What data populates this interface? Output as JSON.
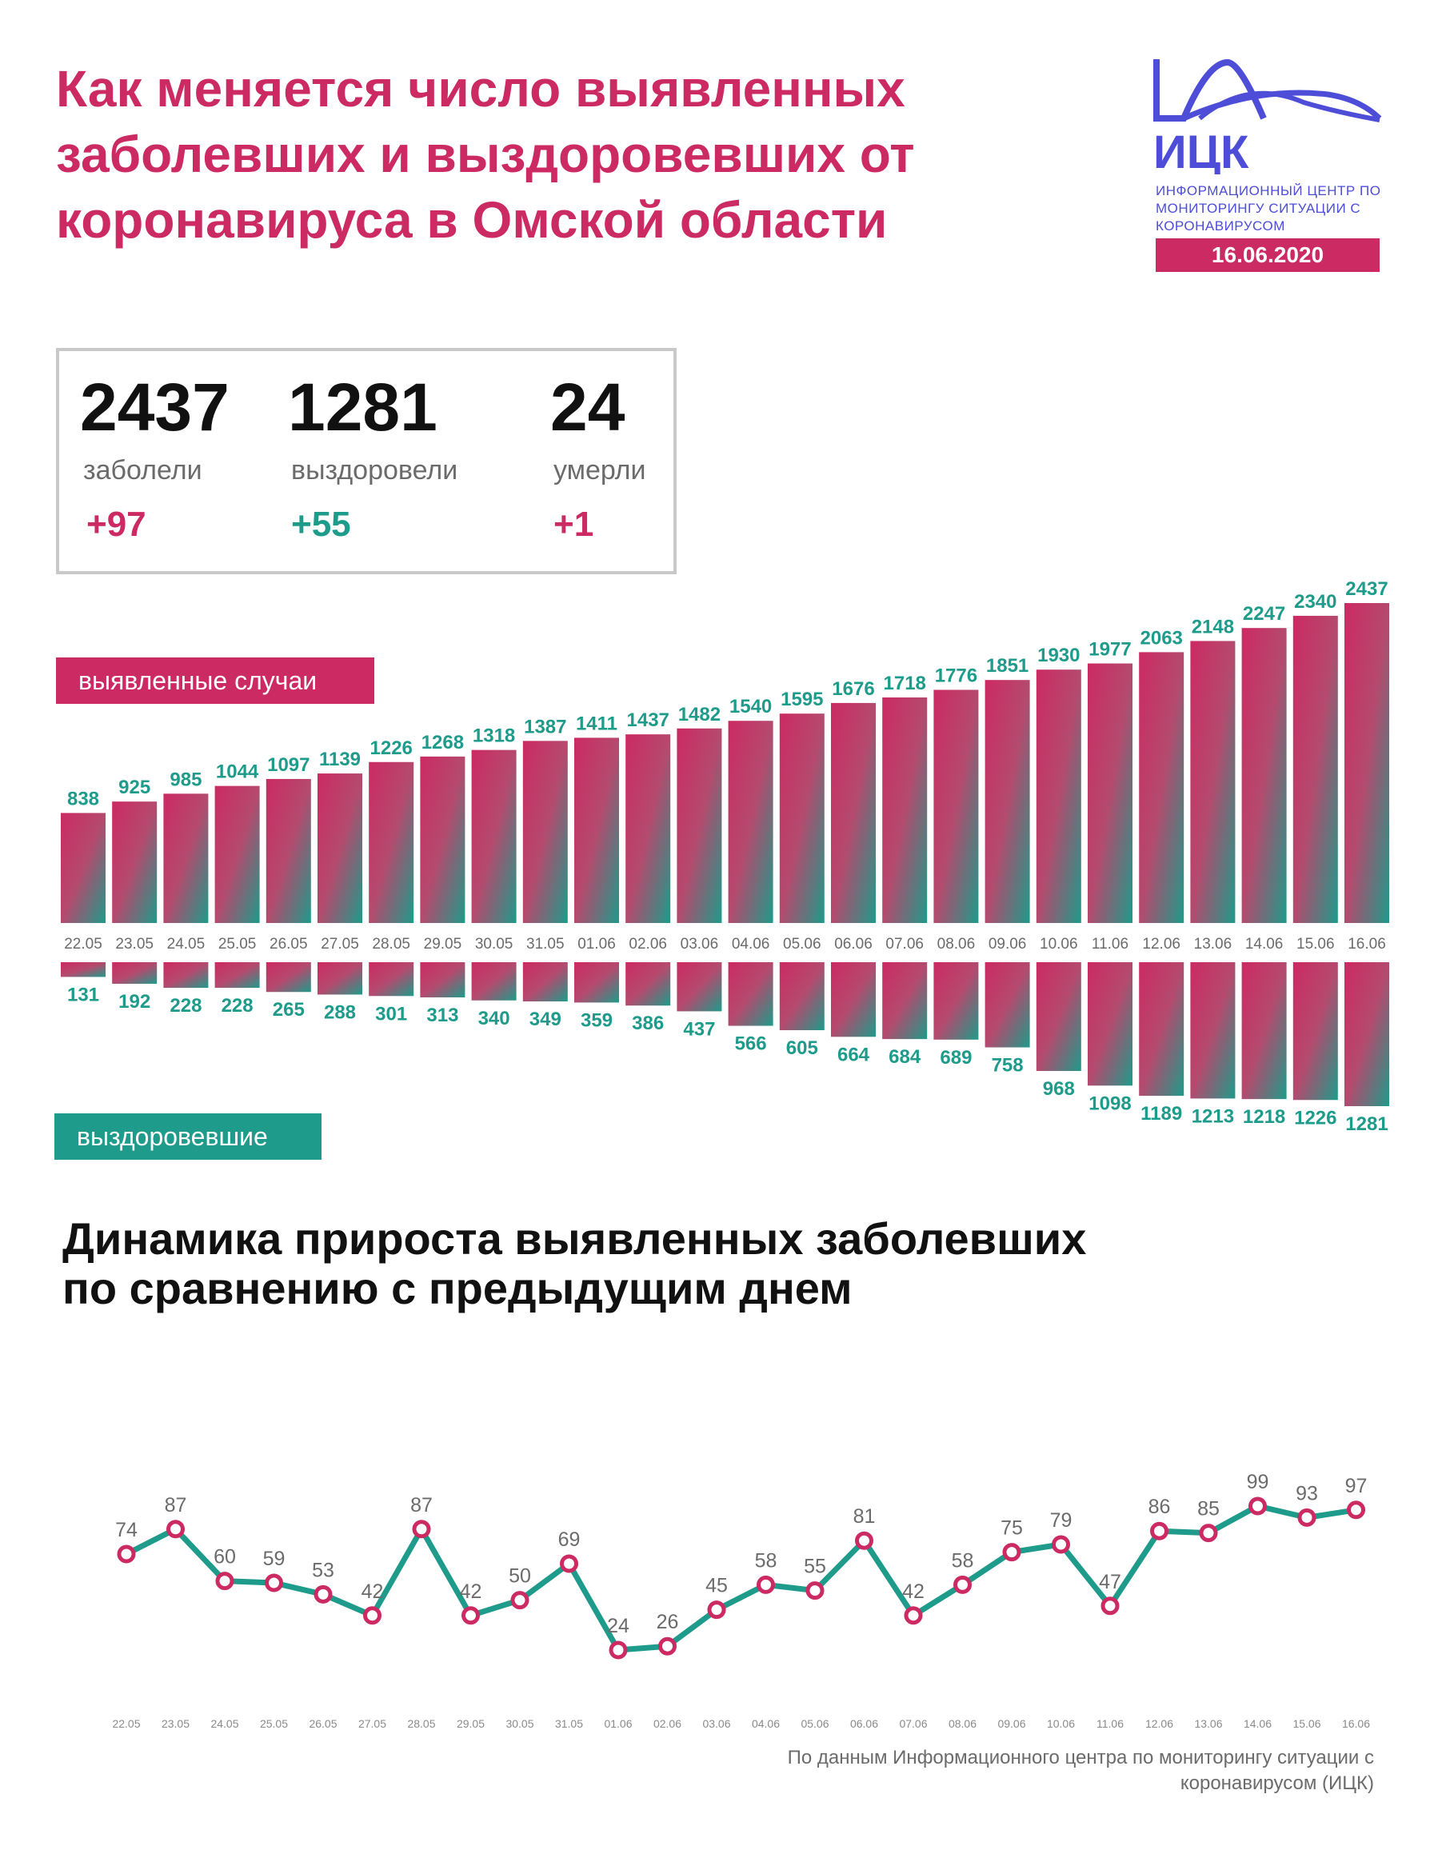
{
  "header": {
    "title": "Как меняется число выявленных заболевших и выздоровевших от коронавируса в Омской области",
    "logo_text": "ИЦК",
    "logo_sub": "ИНФОРМАЦИОННЫЙ ЦЕНТР ПО МОНИТОРИНГУ СИТУАЦИИ С КОРОНАВИРУСОМ",
    "date": "16.06.2020"
  },
  "stats": {
    "sick": {
      "value": "2437",
      "label": "заболели",
      "delta": "+97"
    },
    "recovered": {
      "value": "1281",
      "label": "выздоровели",
      "delta": "+55"
    },
    "died": {
      "value": "24",
      "label": "умерли",
      "delta": "+1"
    }
  },
  "labels": {
    "cases": "выявленные случаи",
    "recovered": "выздоровевшие",
    "dynamics_title": "Динамика прироста выявленных заболевших по сравнению с предыдущим днем",
    "source": "По данным Информационного центра по мониторингу ситуации с коронавирусом (ИЦК)"
  },
  "colors": {
    "accent": "#cc2a62",
    "teal": "#1e9b8a",
    "indigo": "#4d4dd8",
    "grey": "#6b6b6b"
  },
  "chart_data": [
    {
      "type": "bar",
      "categories": [
        "22.05",
        "23.05",
        "24.05",
        "25.05",
        "26.05",
        "27.05",
        "28.05",
        "29.05",
        "30.05",
        "31.05",
        "01.06",
        "02.06",
        "03.06",
        "04.06",
        "05.06",
        "06.06",
        "07.06",
        "08.06",
        "09.06",
        "10.06",
        "11.06",
        "12.06",
        "13.06",
        "14.06",
        "15.06",
        "16.06"
      ],
      "series": [
        {
          "name": "выявленные случаи",
          "values": [
            838,
            925,
            985,
            1044,
            1097,
            1139,
            1226,
            1268,
            1318,
            1387,
            1411,
            1437,
            1482,
            1540,
            1595,
            1676,
            1718,
            1776,
            1851,
            1930,
            1977,
            2063,
            2148,
            2247,
            2340,
            2437
          ]
        },
        {
          "name": "выздоровевшие",
          "values": [
            131,
            192,
            228,
            228,
            265,
            288,
            301,
            313,
            340,
            349,
            359,
            386,
            437,
            566,
            605,
            664,
            684,
            689,
            758,
            968,
            1098,
            1189,
            1213,
            1218,
            1226,
            1281
          ]
        }
      ]
    },
    {
      "type": "line",
      "categories": [
        "22.05",
        "23.05",
        "24.05",
        "25.05",
        "26.05",
        "27.05",
        "28.05",
        "29.05",
        "30.05",
        "31.05",
        "01.06",
        "02.06",
        "03.06",
        "04.06",
        "05.06",
        "06.06",
        "07.06",
        "08.06",
        "09.06",
        "10.06",
        "11.06",
        "12.06",
        "13.06",
        "14.06",
        "15.06",
        "16.06"
      ],
      "values": [
        74,
        87,
        60,
        59,
        53,
        42,
        87,
        42,
        50,
        69,
        24,
        26,
        45,
        58,
        55,
        81,
        42,
        58,
        75,
        79,
        47,
        86,
        85,
        99,
        93,
        97
      ]
    }
  ]
}
